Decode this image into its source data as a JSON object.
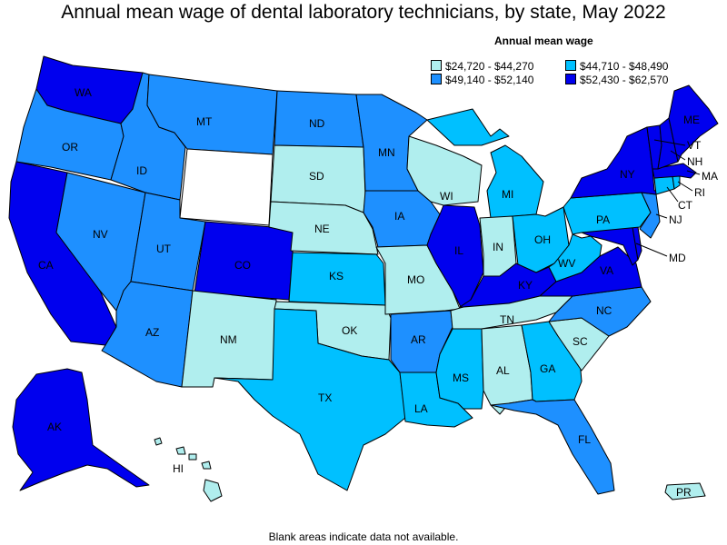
{
  "title": "Annual mean wage of dental laboratory technicians, by state, May 2022",
  "legend": {
    "title": "Annual mean wage",
    "items": [
      {
        "label": "$24,720 - $44,270",
        "color": "#b0eeee"
      },
      {
        "label": "$44,710 - $48,490",
        "color": "#00c0ff"
      },
      {
        "label": "$49,140 - $52,140",
        "color": "#1e90ff"
      },
      {
        "label": "$52,430 - $62,570",
        "color": "#0000ee"
      }
    ]
  },
  "footnote": "Blank areas indicate data not available.",
  "states": {
    "WA": {
      "label": "WA",
      "color": "#0000ee"
    },
    "OR": {
      "label": "OR",
      "color": "#1e90ff"
    },
    "CA": {
      "label": "CA",
      "color": "#0000ee"
    },
    "NV": {
      "label": "NV",
      "color": "#1e90ff"
    },
    "ID": {
      "label": "ID",
      "color": "#1e90ff"
    },
    "MT": {
      "label": "MT",
      "color": "#1e90ff"
    },
    "WY": {
      "label": "",
      "color": "#ffffff"
    },
    "UT": {
      "label": "UT",
      "color": "#1e90ff"
    },
    "AZ": {
      "label": "AZ",
      "color": "#1e90ff"
    },
    "CO": {
      "label": "CO",
      "color": "#0000ee"
    },
    "NM": {
      "label": "NM",
      "color": "#b0eeee"
    },
    "ND": {
      "label": "ND",
      "color": "#1e90ff"
    },
    "SD": {
      "label": "SD",
      "color": "#b0eeee"
    },
    "NE": {
      "label": "NE",
      "color": "#b0eeee"
    },
    "KS": {
      "label": "KS",
      "color": "#00c0ff"
    },
    "OK": {
      "label": "OK",
      "color": "#b0eeee"
    },
    "TX": {
      "label": "TX",
      "color": "#00c0ff"
    },
    "MN": {
      "label": "MN",
      "color": "#1e90ff"
    },
    "IA": {
      "label": "IA",
      "color": "#1e90ff"
    },
    "MO": {
      "label": "MO",
      "color": "#b0eeee"
    },
    "AR": {
      "label": "AR",
      "color": "#1e90ff"
    },
    "LA": {
      "label": "LA",
      "color": "#00c0ff"
    },
    "WI": {
      "label": "WI",
      "color": "#b0eeee"
    },
    "IL": {
      "label": "IL",
      "color": "#0000ee"
    },
    "MI": {
      "label": "MI",
      "color": "#00c0ff"
    },
    "IN": {
      "label": "IN",
      "color": "#b0eeee"
    },
    "OH": {
      "label": "OH",
      "color": "#00c0ff"
    },
    "KY": {
      "label": "KY",
      "color": "#0000ee"
    },
    "TN": {
      "label": "TN",
      "color": "#b0eeee"
    },
    "MS": {
      "label": "MS",
      "color": "#00c0ff"
    },
    "AL": {
      "label": "AL",
      "color": "#b0eeee"
    },
    "GA": {
      "label": "GA",
      "color": "#00c0ff"
    },
    "FL": {
      "label": "FL",
      "color": "#1e90ff"
    },
    "SC": {
      "label": "SC",
      "color": "#b0eeee"
    },
    "NC": {
      "label": "NC",
      "color": "#1e90ff"
    },
    "VA": {
      "label": "VA",
      "color": "#0000ee"
    },
    "WV": {
      "label": "WV",
      "color": "#00c0ff"
    },
    "PA": {
      "label": "PA",
      "color": "#00c0ff"
    },
    "NY": {
      "label": "NY",
      "color": "#0000ee"
    },
    "VT": {
      "label": "VT",
      "color": "#0000ee"
    },
    "NH": {
      "label": "NH",
      "color": "#0000ee"
    },
    "ME": {
      "label": "ME",
      "color": "#0000ee"
    },
    "MA": {
      "label": "MA",
      "color": "#0000ee"
    },
    "RI": {
      "label": "RI",
      "color": "#00c0ff"
    },
    "CT": {
      "label": "CT",
      "color": "#00c0ff"
    },
    "NJ": {
      "label": "NJ",
      "color": "#1e90ff"
    },
    "DE": {
      "label": "",
      "color": "#0000ee"
    },
    "MD": {
      "label": "MD",
      "color": "#0000ee"
    },
    "AK": {
      "label": "AK",
      "color": "#0000ee"
    },
    "HI": {
      "label": "HI",
      "color": "#b0eeee"
    },
    "PR": {
      "label": "PR",
      "color": "#b0eeee"
    }
  }
}
